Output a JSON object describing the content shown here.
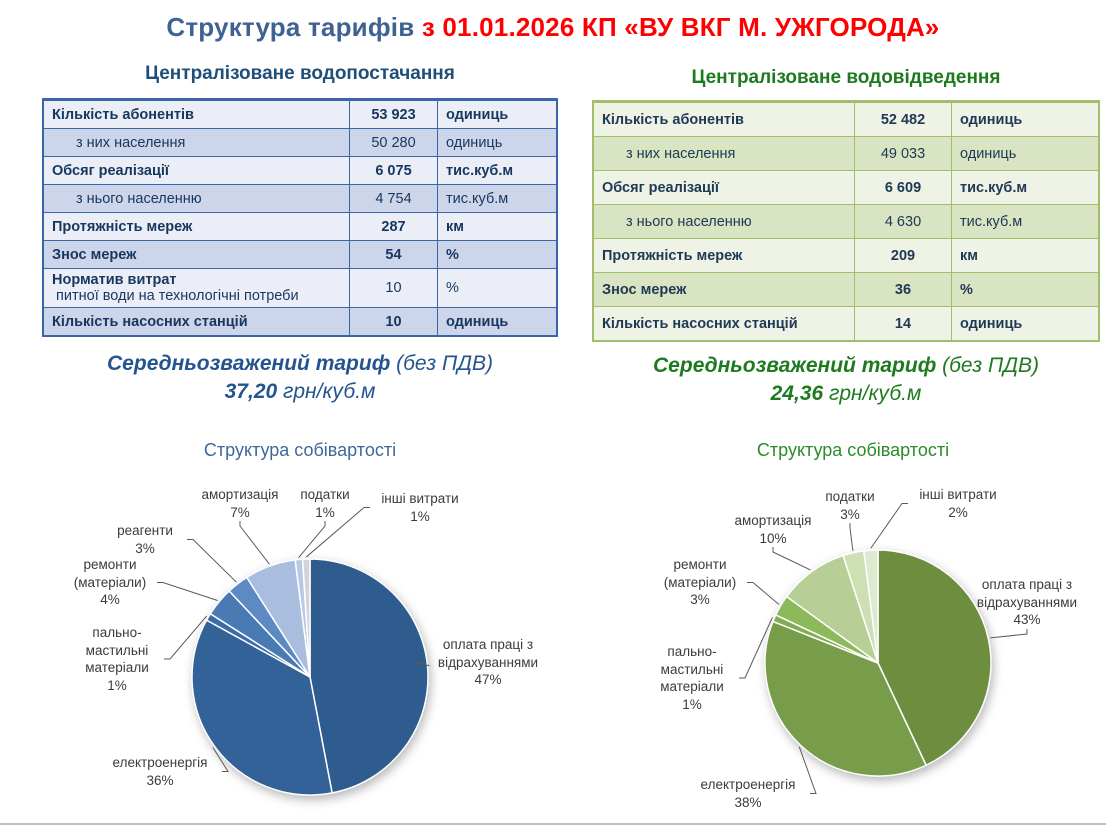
{
  "page_title": {
    "blue": "Структура тарифів",
    "red": " з 01.01.2026 КП «ВУ ВКГ М. УЖГОРОДА»"
  },
  "colors": {
    "title_blue": "#3F6292",
    "title_red": "#FF0000",
    "water_accent": "#1F4E79",
    "wastewater_accent": "#1E7A1F"
  },
  "water_supply": {
    "heading": "Централізоване водопостачання",
    "rows": [
      {
        "label_strong": "Кількість абонентів",
        "label_normal": "",
        "value": "53 923",
        "unit": "одиниць",
        "bold": true,
        "indent": false
      },
      {
        "label_strong": "",
        "label_normal": "з них населення",
        "value": "50 280",
        "unit": "одиниць",
        "bold": false,
        "indent": true
      },
      {
        "label_strong": "Обсяг реалізації",
        "label_normal": "",
        "value": "6 075",
        "unit": "тис.куб.м",
        "bold": true,
        "indent": false
      },
      {
        "label_strong": "",
        "label_normal": "з нього населенню",
        "value": "4 754",
        "unit": "тис.куб.м",
        "bold": false,
        "indent": true
      },
      {
        "label_strong": "Протяжність мереж",
        "label_normal": "",
        "value": "287",
        "unit": "км",
        "bold": true,
        "indent": false
      },
      {
        "label_strong": "Знос мереж",
        "label_normal": "",
        "value": "54",
        "unit": "%",
        "bold": true,
        "indent": false
      },
      {
        "label_strong": "Норматив витрат",
        "label_normal": " питної води на технологічні потреби",
        "value": "10",
        "unit": "%",
        "bold": false,
        "indent": false
      },
      {
        "label_strong": "Кількість насосних станцій",
        "label_normal": "",
        "value": "10",
        "unit": "одиниць",
        "bold": true,
        "indent": false
      }
    ],
    "tariff_label": "Середньозважений тариф",
    "tariff_label_rest": " (без ПДВ)",
    "tariff_value": "37,20",
    "tariff_unit": " грн/куб.м"
  },
  "wastewater": {
    "heading": "Централізоване водовідведення",
    "rows": [
      {
        "label_strong": "Кількість абонентів",
        "label_normal": "",
        "value": "52 482",
        "unit": "одиниць",
        "bold": true,
        "indent": false
      },
      {
        "label_strong": "",
        "label_normal": "з них населення",
        "value": "49 033",
        "unit": "одиниць",
        "bold": false,
        "indent": true
      },
      {
        "label_strong": "Обсяг реалізації",
        "label_normal": "",
        "value": "6 609",
        "unit": "тис.куб.м",
        "bold": true,
        "indent": false
      },
      {
        "label_strong": "",
        "label_normal": "з нього населенню",
        "value": "4 630",
        "unit": "тис.куб.м",
        "bold": false,
        "indent": true
      },
      {
        "label_strong": "Протяжність мереж",
        "label_normal": "",
        "value": "209",
        "unit": "км",
        "bold": true,
        "indent": false
      },
      {
        "label_strong": "Знос мереж",
        "label_normal": "",
        "value": "36",
        "unit": "%",
        "bold": true,
        "indent": false
      },
      {
        "label_strong": "Кількість насосних станцій",
        "label_normal": "",
        "value": "14",
        "unit": "одиниць",
        "bold": true,
        "indent": false
      }
    ],
    "tariff_label": "Середньозважений тариф",
    "tariff_label_rest": " (без ПДВ)",
    "tariff_value": "24,36",
    "tariff_unit": " грн/куб.м"
  },
  "chart_data": [
    {
      "type": "pie",
      "title": "Структура собівартості",
      "values_unit": "percent",
      "legend_position": "none",
      "labels": "outside-callouts",
      "slices": [
        {
          "label": "оплата праці з відрахуваннями",
          "value": 47,
          "color": "#2E5C8F"
        },
        {
          "label": "електроенергія",
          "value": 36,
          "color": "#336298"
        },
        {
          "label": "пально-мастильні матеріали",
          "value": 1,
          "color": "#3A6CA5"
        },
        {
          "label": "ремонти (матеріали)",
          "value": 4,
          "color": "#4A7AB4"
        },
        {
          "label": "реагенти",
          "value": 3,
          "color": "#5E8AC3"
        },
        {
          "label": "амортизація",
          "value": 7,
          "color": "#A9BDDE"
        },
        {
          "label": "податки",
          "value": 1,
          "color": "#BAC8E6"
        },
        {
          "label": "інші витрати",
          "value": 1,
          "color": "#D2D4D8"
        }
      ]
    },
    {
      "type": "pie",
      "title": "Структура собівартості",
      "values_unit": "percent",
      "legend_position": "none",
      "labels": "outside-callouts",
      "slices": [
        {
          "label": "оплата праці з відрахуваннями",
          "value": 43,
          "color": "#6D8E3F"
        },
        {
          "label": "електроенергія",
          "value": 38,
          "color": "#789D4A"
        },
        {
          "label": "пально-мастильні матеріали",
          "value": 1,
          "color": "#83AC52"
        },
        {
          "label": "ремонти (матеріали)",
          "value": 3,
          "color": "#8CB95A"
        },
        {
          "label": "амортизація",
          "value": 10,
          "color": "#B7CF97"
        },
        {
          "label": "податки",
          "value": 3,
          "color": "#CDDFB3"
        },
        {
          "label": "інші витрати",
          "value": 2,
          "color": "#DFE9D0"
        }
      ]
    }
  ]
}
